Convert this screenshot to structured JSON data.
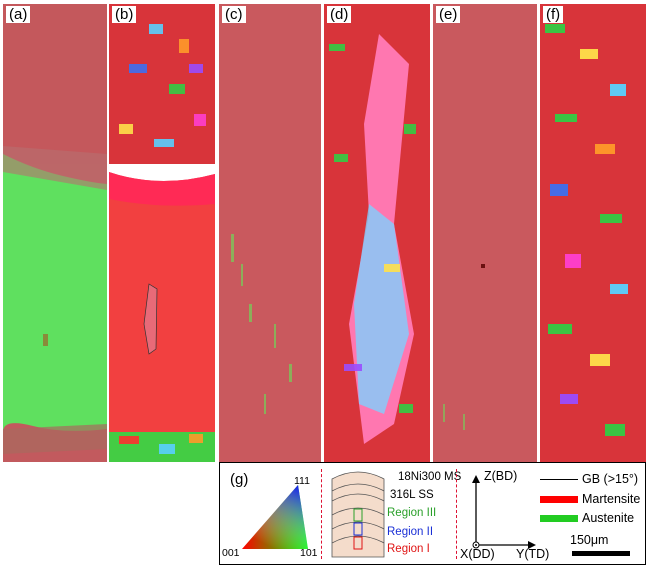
{
  "panels": [
    "(a)",
    "(b)",
    "(c)",
    "(d)",
    "(e)",
    "(f)"
  ],
  "legend": {
    "panel_label": "(g)",
    "ipf": {
      "top": "111",
      "left": "001",
      "right": "101"
    },
    "sample_layers": {
      "top": "18Ni300 MS",
      "second": "316L SS",
      "regions": [
        {
          "label": "Region III",
          "color": "#2aa02a"
        },
        {
          "label": "Region II",
          "color": "#1a2fd6"
        },
        {
          "label": "Region I",
          "color": "#e01414"
        }
      ]
    },
    "axes": {
      "z": "Z(BD)",
      "x": "X(DD)",
      "y": "Y(TD)"
    },
    "key": [
      {
        "label": "GB (>15°)",
        "color": "#000000"
      },
      {
        "label": "Martensite",
        "color": "#ff0000"
      },
      {
        "label": "Austenite",
        "color": "#22cc22"
      }
    ],
    "scale_bar": "150μm"
  }
}
